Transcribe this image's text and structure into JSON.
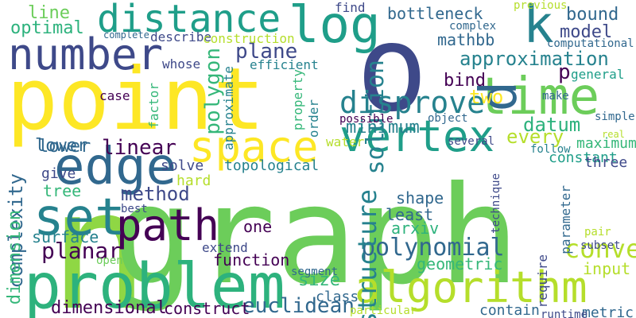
{
  "words": [
    {
      "text": "n",
      "color": "#8fd744",
      "rotate": 0
    },
    {
      "text": "graph",
      "color": "#6ccd5a",
      "rotate": 0
    },
    {
      "text": "point",
      "color": "#fde725",
      "rotate": 0
    },
    {
      "text": "o",
      "color": "#3e4989",
      "rotate": 0
    },
    {
      "text": "problem",
      "color": "#2db27d",
      "rotate": 0
    },
    {
      "text": "algorithm",
      "color": "#b5de2b",
      "rotate": 0
    },
    {
      "text": "time",
      "color": "#6ccd5a",
      "rotate": 0
    },
    {
      "text": "vertex",
      "color": "#1f9e89",
      "rotate": 0
    },
    {
      "text": "edge",
      "color": "#31688e",
      "rotate": 0
    },
    {
      "text": "space",
      "color": "#fde725",
      "rotate": 0
    },
    {
      "text": "path",
      "color": "#440154",
      "rotate": 0
    },
    {
      "text": "set",
      "color": "#26828e",
      "rotate": 0
    },
    {
      "text": "log",
      "color": "#1f9e89",
      "rotate": 0
    },
    {
      "text": "number",
      "color": "#3e4989",
      "rotate": 0
    },
    {
      "text": "distance",
      "color": "#1f9e89",
      "rotate": 0
    },
    {
      "text": "k",
      "color": "#26828e",
      "rotate": 0
    },
    {
      "text": "d",
      "color": "#31688e",
      "rotate": 90
    },
    {
      "text": "disprove",
      "color": "#26828e",
      "rotate": 0
    },
    {
      "text": "approximation",
      "color": "#26828e",
      "rotate": 0
    },
    {
      "text": "polynomial",
      "color": "#31688e",
      "rotate": 0
    },
    {
      "text": "convex",
      "color": "#b5de2b",
      "rotate": 0
    },
    {
      "text": "structure",
      "color": "#26828e",
      "rotate": 90
    },
    {
      "text": "solution",
      "color": "#26828e",
      "rotate": 90
    },
    {
      "text": "euclidean",
      "color": "#31688e",
      "rotate": 0
    },
    {
      "text": "planar",
      "color": "#440154",
      "rotate": 0
    },
    {
      "text": "method",
      "color": "#3e4989",
      "rotate": 0
    },
    {
      "text": "linear",
      "color": "#440154",
      "rotate": 0
    },
    {
      "text": "complexity",
      "color": "#31688e",
      "rotate": 90
    },
    {
      "text": "polygon",
      "color": "#35b779",
      "rotate": 90
    },
    {
      "text": "plane",
      "color": "#3e4989",
      "rotate": 0
    },
    {
      "text": "bottleneck",
      "color": "#31688e",
      "rotate": 0
    },
    {
      "text": "datum",
      "color": "#2db27d",
      "rotate": 0
    },
    {
      "text": "minimum",
      "color": "#26828e",
      "rotate": 0
    },
    {
      "text": "every",
      "color": "#b5de2b",
      "rotate": 0
    },
    {
      "text": "two",
      "color": "#fde725",
      "rotate": 0
    },
    {
      "text": "bind",
      "color": "#440154",
      "rotate": 0
    },
    {
      "text": "mathbb",
      "color": "#31688e",
      "rotate": 0
    },
    {
      "text": "bound",
      "color": "#31688e",
      "rotate": 0
    },
    {
      "text": "model",
      "color": "#3e4989",
      "rotate": 0
    },
    {
      "text": "lower",
      "color": "#31688e",
      "rotate": 0
    },
    {
      "text": "tree",
      "color": "#35b779",
      "rotate": 0
    },
    {
      "text": "size",
      "color": "#35b779",
      "rotate": 0
    },
    {
      "text": "geometric",
      "color": "#35b779",
      "rotate": 0
    },
    {
      "text": "input",
      "color": "#b5de2b",
      "rotate": 0
    },
    {
      "text": "dimensional",
      "color": "#440154",
      "rotate": 0
    },
    {
      "text": "dimension",
      "color": "#35b779",
      "rotate": 90
    },
    {
      "text": "optimal",
      "color": "#2db27d",
      "rotate": 0
    },
    {
      "text": "line",
      "color": "#6ccd5a",
      "rotate": 0
    },
    {
      "text": "p",
      "color": "#440154",
      "rotate": 0
    },
    {
      "text": "construct",
      "color": "#440154",
      "rotate": 0
    },
    {
      "text": "function",
      "color": "#440154",
      "rotate": 0
    },
    {
      "text": "surface",
      "color": "#26828e",
      "rotate": 0
    },
    {
      "text": "one",
      "color": "#440154",
      "rotate": 0
    },
    {
      "text": "shape",
      "color": "#31688e",
      "rotate": 0
    },
    {
      "text": "least",
      "color": "#31688e",
      "rotate": 0
    },
    {
      "text": "arxiv",
      "color": "#2db27d",
      "rotate": 0
    },
    {
      "text": "class",
      "color": "#31688e",
      "rotate": 0
    },
    {
      "text": "contain",
      "color": "#31688e",
      "rotate": 0
    },
    {
      "text": "metric",
      "color": "#31688e",
      "rotate": 0
    },
    {
      "text": "maximum",
      "color": "#35b779",
      "rotate": 0
    },
    {
      "text": "constant",
      "color": "#1f9e89",
      "rotate": 0
    },
    {
      "text": "three",
      "color": "#3e4989",
      "rotate": 0
    },
    {
      "text": "topological",
      "color": "#26828e",
      "rotate": 0
    },
    {
      "text": "solve",
      "color": "#3e4989",
      "rotate": 0
    },
    {
      "text": "hard",
      "color": "#b5de2b",
      "rotate": 0
    },
    {
      "text": "give",
      "color": "#3e4989",
      "rotate": 0
    },
    {
      "text": "lower",
      "color": "#31688e",
      "rotate": 0
    },
    {
      "text": "water",
      "color": "#b5de2b",
      "rotate": 0
    },
    {
      "text": "general",
      "color": "#1f9e89",
      "rotate": 0
    },
    {
      "text": "efficient",
      "color": "#26828e",
      "rotate": 0
    },
    {
      "text": "whose",
      "color": "#3e4989",
      "rotate": 0
    },
    {
      "text": "case",
      "color": "#440154",
      "rotate": 0
    },
    {
      "text": "describe",
      "color": "#3e4989",
      "rotate": 0
    },
    {
      "text": "construction",
      "color": "#b5de2b",
      "rotate": 0
    },
    {
      "text": "complete",
      "color": "#31688e",
      "rotate": 0
    },
    {
      "text": "find",
      "color": "#3e4989",
      "rotate": 0
    },
    {
      "text": "complex",
      "color": "#31688e",
      "rotate": 0
    },
    {
      "text": "previous",
      "color": "#b5de2b",
      "rotate": 0
    },
    {
      "text": "computational",
      "color": "#31688e",
      "rotate": 0
    },
    {
      "text": "make",
      "color": "#31688e",
      "rotate": 0
    },
    {
      "text": "simple",
      "color": "#31688e",
      "rotate": 0
    },
    {
      "text": "real",
      "color": "#b5de2b",
      "rotate": 0
    },
    {
      "text": "follow",
      "color": "#26828e",
      "rotate": 0
    },
    {
      "text": "several",
      "color": "#3e4989",
      "rotate": 0
    },
    {
      "text": "object",
      "color": "#31688e",
      "rotate": 0
    },
    {
      "text": "possible",
      "color": "#440154",
      "rotate": 0
    },
    {
      "text": "order",
      "color": "#26828e",
      "rotate": 90
    },
    {
      "text": "property",
      "color": "#35b779",
      "rotate": 90
    },
    {
      "text": "approximate",
      "color": "#26828e",
      "rotate": 90
    },
    {
      "text": "factor",
      "color": "#35b779",
      "rotate": 90
    },
    {
      "text": "best",
      "color": "#3e4989",
      "rotate": 0
    },
    {
      "text": "open",
      "color": "#6ccd5a",
      "rotate": 0
    },
    {
      "text": "extend",
      "color": "#3e4989",
      "rotate": 0
    },
    {
      "text": "segment",
      "color": "#31688e",
      "rotate": 0
    },
    {
      "text": "particular",
      "color": "#b5de2b",
      "rotate": 0
    },
    {
      "text": "runtime",
      "color": "#3e4989",
      "rotate": 0
    },
    {
      "text": "require",
      "color": "#3e4989",
      "rotate": 90
    },
    {
      "text": "technique",
      "color": "#3e4989",
      "rotate": 90
    },
    {
      "text": "parameter",
      "color": "#31688e",
      "rotate": 90
    },
    {
      "text": "pair",
      "color": "#b5de2b",
      "rotate": 0
    },
    {
      "text": "subset",
      "color": "#3e4989",
      "rotate": 0
    }
  ]
}
